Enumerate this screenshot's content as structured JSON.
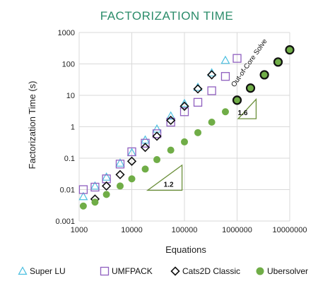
{
  "chart_data": {
    "type": "scatter",
    "title": "FACTORIZATION TIME",
    "xlabel": "Equations",
    "ylabel": "Factorization Time (s)",
    "x_scale": "log",
    "y_scale": "log",
    "xlim": [
      1000,
      10000000
    ],
    "ylim": [
      0.001,
      1000
    ],
    "x_ticks": [
      "1000",
      "10000",
      "100000",
      "1000000",
      "10000000"
    ],
    "y_ticks": [
      "0.001",
      "0.01",
      "0.1",
      "1",
      "10",
      "100",
      "1000"
    ],
    "grid": true,
    "legend_position": "bottom",
    "series": [
      {
        "name": "Super LU",
        "marker": "triangle",
        "color": "#4bbfe0",
        "points": [
          [
            1200,
            0.006
          ],
          [
            2000,
            0.013
          ],
          [
            3300,
            0.025
          ],
          [
            6000,
            0.07
          ],
          [
            10000,
            0.15
          ],
          [
            18000,
            0.38
          ],
          [
            30000,
            0.85
          ],
          [
            55000,
            2.2
          ],
          [
            100000,
            5.5
          ],
          [
            180000,
            18
          ],
          [
            330000,
            52
          ],
          [
            600000,
            130
          ]
        ]
      },
      {
        "name": "UMFPACK",
        "marker": "square",
        "color": "#8f5fbf",
        "points": [
          [
            1200,
            0.01
          ],
          [
            2000,
            0.012
          ],
          [
            3300,
            0.022
          ],
          [
            6000,
            0.065
          ],
          [
            10000,
            0.16
          ],
          [
            18000,
            0.3
          ],
          [
            30000,
            0.6
          ],
          [
            55000,
            1.4
          ],
          [
            100000,
            3.0
          ],
          [
            180000,
            6.0
          ],
          [
            330000,
            14
          ],
          [
            600000,
            40
          ],
          [
            1000000,
            150
          ]
        ]
      },
      {
        "name": "Cats2D Classic",
        "marker": "diamond",
        "color": "#111111",
        "points": [
          [
            2000,
            0.005
          ],
          [
            3300,
            0.013
          ],
          [
            6000,
            0.03
          ],
          [
            10000,
            0.08
          ],
          [
            18000,
            0.22
          ],
          [
            30000,
            0.5
          ],
          [
            55000,
            1.6
          ],
          [
            100000,
            4.5
          ],
          [
            180000,
            16
          ],
          [
            330000,
            45
          ]
        ]
      },
      {
        "name": "Ubersolver",
        "marker": "circle",
        "color": "#70ad47",
        "points": [
          [
            1200,
            0.003
          ],
          [
            2000,
            0.004
          ],
          [
            3300,
            0.007
          ],
          [
            6000,
            0.013
          ],
          [
            10000,
            0.022
          ],
          [
            18000,
            0.045
          ],
          [
            30000,
            0.09
          ],
          [
            55000,
            0.18
          ],
          [
            100000,
            0.33
          ],
          [
            180000,
            0.65
          ],
          [
            330000,
            1.4
          ],
          [
            600000,
            3.0
          ],
          [
            1000000,
            6.5
          ],
          [
            1000000,
            7.0
          ],
          [
            1800000,
            17
          ],
          [
            3300000,
            45
          ],
          [
            6000000,
            115
          ],
          [
            10000000,
            280
          ]
        ]
      }
    ],
    "out_of_core_points": [
      [
        1000000,
        7.0
      ],
      [
        1800000,
        17
      ],
      [
        3300000,
        45
      ],
      [
        6000000,
        115
      ],
      [
        10000000,
        280
      ]
    ],
    "annotations": [
      {
        "text": "Out-of-Core Solve",
        "anchor": [
          700000,
          50
        ]
      },
      {
        "text": "1.2",
        "triangle": [
          [
            20000,
            0.0095
          ],
          [
            90000,
            0.0095
          ],
          [
            90000,
            0.06
          ]
        ]
      },
      {
        "text": "1.6",
        "triangle": [
          [
            1050000,
            1.8
          ],
          [
            2300000,
            1.8
          ],
          [
            2300000,
            7.5
          ]
        ]
      }
    ]
  }
}
